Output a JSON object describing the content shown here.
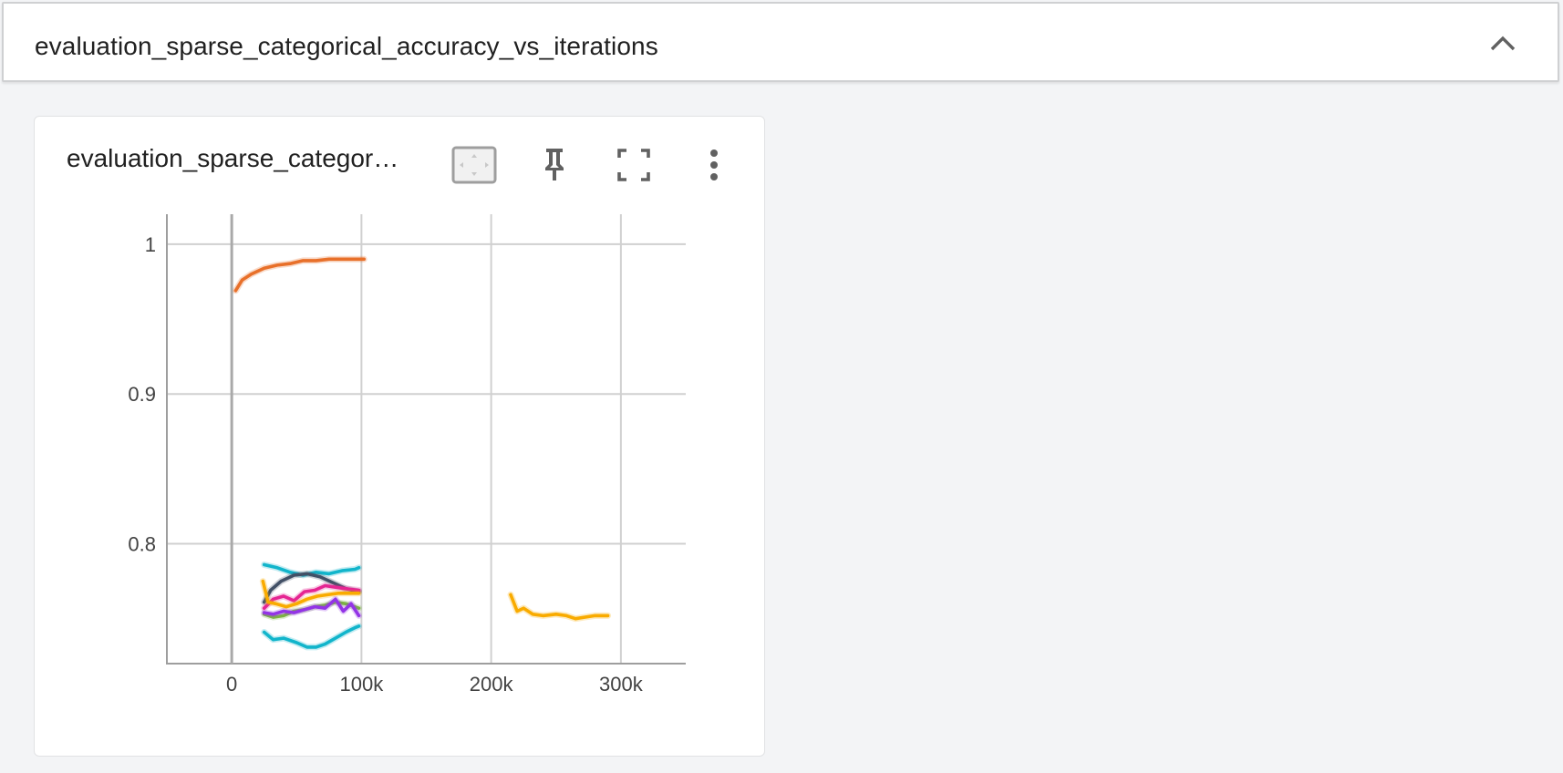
{
  "group": {
    "title": "evaluation_sparse_categorical_accuracy_vs_iterations",
    "collapse_icon": "chevron-up-icon"
  },
  "card": {
    "title": "evaluation_sparse_categor…",
    "tools": {
      "fit_domain_icon": "fit-domain-icon",
      "pin_icon": "pin-icon",
      "fullscreen_icon": "fullscreen-icon",
      "more_icon": "more-vert-icon"
    }
  },
  "chart_data": {
    "type": "line",
    "title": "",
    "xlabel": "",
    "ylabel": "",
    "x_ticks": [
      {
        "value": 0,
        "label": "0"
      },
      {
        "value": 100000,
        "label": "100k"
      },
      {
        "value": 200000,
        "label": "200k"
      },
      {
        "value": 300000,
        "label": "300k"
      }
    ],
    "y_ticks": [
      {
        "value": 0.8,
        "label": "0.8"
      },
      {
        "value": 0.9,
        "label": "0.9"
      },
      {
        "value": 1.0,
        "label": "1"
      }
    ],
    "xlim": [
      -50000,
      350000
    ],
    "ylim": [
      0.72,
      1.02
    ],
    "grid": true,
    "series": [
      {
        "color": "#e8702a",
        "x": [
          3000,
          8000,
          15000,
          25000,
          35000,
          45000,
          55000,
          65000,
          75000,
          85000,
          95000,
          102000
        ],
        "y": [
          0.969,
          0.976,
          0.98,
          0.984,
          0.986,
          0.987,
          0.989,
          0.989,
          0.99,
          0.99,
          0.99,
          0.99
        ]
      },
      {
        "color": "#12b5cb",
        "x": [
          25000,
          35000,
          45000,
          55000,
          65000,
          75000,
          85000,
          95000,
          98000
        ],
        "y": [
          0.786,
          0.784,
          0.781,
          0.779,
          0.781,
          0.78,
          0.782,
          0.783,
          0.784
        ]
      },
      {
        "color": "#12b5cb",
        "x": [
          25000,
          32000,
          40000,
          50000,
          58000,
          65000,
          72000,
          80000,
          88000,
          95000,
          98000
        ],
        "y": [
          0.741,
          0.736,
          0.737,
          0.734,
          0.731,
          0.731,
          0.733,
          0.737,
          0.741,
          0.744,
          0.745
        ]
      },
      {
        "color": "#425066",
        "x": [
          25000,
          30000,
          38000,
          48000,
          58000,
          68000,
          78000,
          88000,
          98000
        ],
        "y": [
          0.761,
          0.769,
          0.775,
          0.779,
          0.78,
          0.778,
          0.774,
          0.77,
          0.768
        ]
      },
      {
        "color": "#e52592",
        "x": [
          25000,
          32000,
          40000,
          48000,
          56000,
          64000,
          72000,
          80000,
          88000,
          98000
        ],
        "y": [
          0.757,
          0.763,
          0.765,
          0.762,
          0.768,
          0.769,
          0.772,
          0.771,
          0.77,
          0.769
        ]
      },
      {
        "color": "#f9ab00",
        "x": [
          24000,
          28000,
          34000,
          42000,
          50000,
          58000,
          66000,
          74000,
          82000,
          90000,
          98000
        ],
        "y": [
          0.775,
          0.761,
          0.76,
          0.758,
          0.76,
          0.763,
          0.765,
          0.766,
          0.767,
          0.767,
          0.767
        ]
      },
      {
        "color": "#7cb342",
        "x": [
          25000,
          32000,
          40000,
          48000,
          56000,
          64000,
          72000,
          80000,
          88000,
          98000
        ],
        "y": [
          0.753,
          0.751,
          0.752,
          0.755,
          0.756,
          0.758,
          0.759,
          0.761,
          0.76,
          0.757
        ]
      },
      {
        "color": "#9334e6",
        "x": [
          25000,
          32000,
          40000,
          48000,
          56000,
          64000,
          72000,
          80000,
          86000,
          92000,
          98000
        ],
        "y": [
          0.754,
          0.753,
          0.755,
          0.754,
          0.756,
          0.758,
          0.757,
          0.763,
          0.755,
          0.76,
          0.752
        ]
      },
      {
        "color": "#f9ab00",
        "x": [
          215000,
          220000,
          225000,
          232000,
          240000,
          250000,
          258000,
          265000,
          272000,
          280000,
          290000
        ],
        "y": [
          0.766,
          0.755,
          0.757,
          0.753,
          0.752,
          0.753,
          0.752,
          0.75,
          0.751,
          0.752,
          0.752
        ]
      }
    ]
  }
}
